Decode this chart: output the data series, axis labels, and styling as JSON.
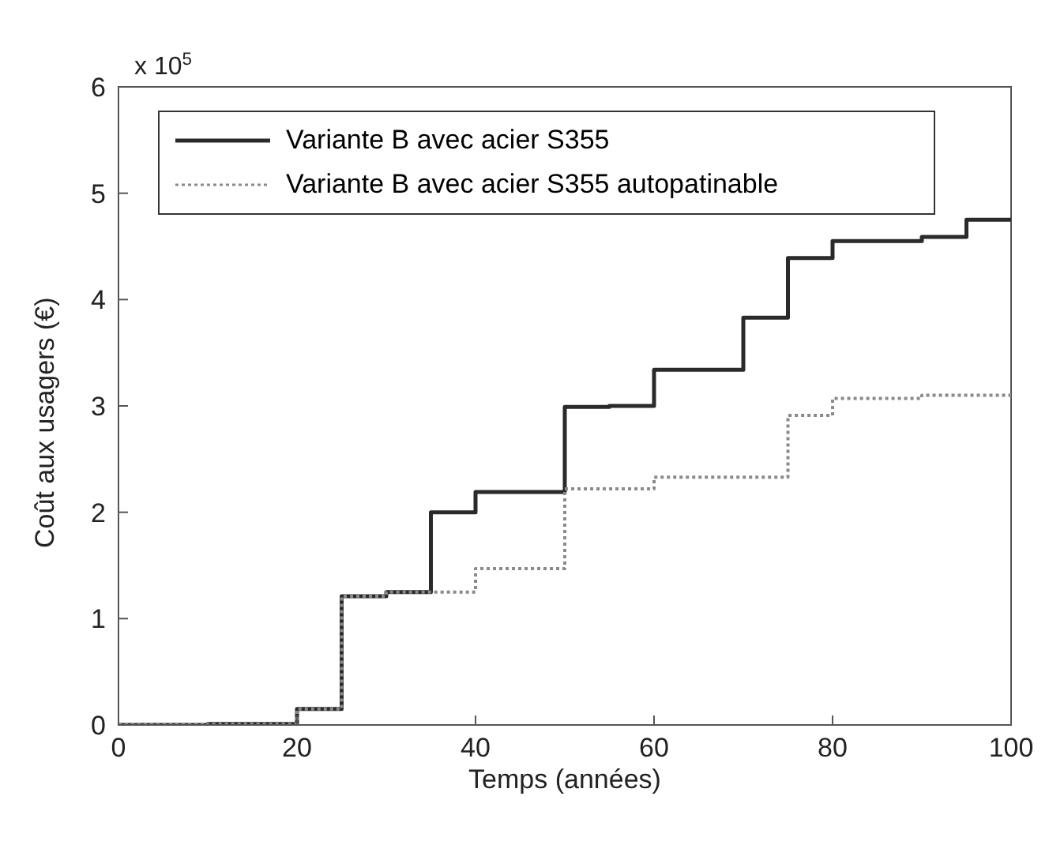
{
  "chart_data": {
    "type": "step",
    "xlabel": "Temps (années)",
    "ylabel": "Coût aux usagers (€)",
    "annotations": [
      "x 10$^{5}$"
    ],
    "x": [
      0,
      10,
      20,
      25,
      30,
      35,
      40,
      50,
      55,
      60,
      70,
      75,
      80,
      90,
      95,
      100
    ],
    "series": [
      {
        "name": "Variante B avec acier S355",
        "color": "#2a2a2a",
        "line_style": "solid",
        "values": [
          0,
          0.01,
          0.15,
          1.21,
          1.25,
          2.0,
          2.19,
          2.99,
          3.0,
          3.34,
          3.83,
          4.39,
          4.55,
          4.59,
          4.75,
          4.75
        ]
      },
      {
        "name": "Variante B avec acier S355 autopatinable",
        "color": "#8a8a8a",
        "line_style": "dotted",
        "values": [
          0,
          0.01,
          0.15,
          1.21,
          1.25,
          1.25,
          1.47,
          2.22,
          2.22,
          2.33,
          2.33,
          2.91,
          3.07,
          3.1,
          3.1,
          3.1
        ]
      }
    ],
    "xlim": [
      0,
      100
    ],
    "xticks": [
      0,
      20,
      40,
      60,
      80,
      100
    ],
    "ylim": [
      0,
      6
    ],
    "yticks": [
      0,
      1,
      2,
      3,
      4,
      5,
      6
    ],
    "grid": false,
    "legend": "top left",
    "marker": "none"
  }
}
